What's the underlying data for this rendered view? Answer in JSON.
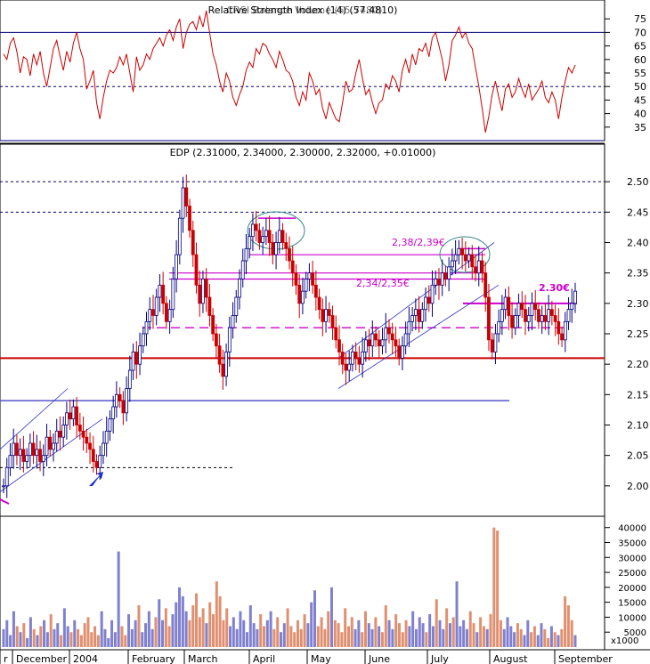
{
  "chart_data": [
    {
      "panel": "rsi",
      "type": "line",
      "title": "Relative Strength Index (14) (57.4810)",
      "overlay_title": "CRSI Balance Volume (55.7480)",
      "ylim": [
        30,
        80
      ],
      "yticks": [
        35,
        40,
        45,
        50,
        55,
        60,
        65,
        70,
        75
      ],
      "reference_lines": [
        70,
        50,
        30
      ],
      "values": [
        62,
        60,
        66,
        68,
        63,
        55,
        61,
        60,
        54,
        62,
        58,
        63,
        55,
        50,
        57,
        64,
        67,
        61,
        56,
        63,
        59,
        66,
        70,
        64,
        60,
        49,
        52,
        56,
        44,
        38,
        46,
        52,
        56,
        55,
        57,
        61,
        58,
        62,
        55,
        48,
        61,
        56,
        58,
        62,
        60,
        64,
        66,
        68,
        65,
        69,
        71,
        67,
        72,
        75,
        64,
        70,
        73,
        74,
        71,
        76,
        72,
        78,
        70,
        62,
        58,
        52,
        48,
        55,
        52,
        46,
        43,
        47,
        50,
        56,
        59,
        57,
        64,
        62,
        66,
        65,
        62,
        60,
        57,
        63,
        60,
        56,
        55,
        52,
        46,
        43,
        48,
        45,
        55,
        52,
        47,
        49,
        42,
        38,
        44,
        41,
        38,
        37,
        44,
        52,
        48,
        49,
        55,
        60,
        53,
        47,
        49,
        44,
        40,
        44,
        45,
        51,
        49,
        54,
        52,
        48,
        56,
        60,
        55,
        62,
        58,
        64,
        63,
        66,
        61,
        68,
        70,
        65,
        60,
        52,
        58,
        67,
        69,
        72,
        68,
        70,
        66,
        64,
        57,
        50,
        42,
        33,
        39,
        47,
        52,
        46,
        41,
        49,
        51,
        46,
        48,
        53,
        49,
        46,
        51,
        45,
        47,
        49,
        52,
        46,
        44,
        48,
        45,
        38,
        46,
        52,
        57,
        55,
        58
      ]
    },
    {
      "panel": "price",
      "type": "ohlc",
      "title": "EDP (2.31000, 2.34000, 2.30000, 2.32000, +0.01000)",
      "ylim": [
        1.95,
        2.55
      ],
      "yticks": [
        2.0,
        2.05,
        2.1,
        2.15,
        2.2,
        2.25,
        2.3,
        2.35,
        2.4,
        2.45,
        2.5
      ],
      "annotations": [
        "2,38/2,39€",
        "2,34/2,35€",
        "2.30€"
      ],
      "support_line": 2.21,
      "resistance_lines": [
        2.5,
        2.45
      ],
      "close": [
        2.0,
        2.03,
        2.05,
        2.07,
        2.05,
        2.06,
        2.04,
        2.05,
        2.07,
        2.05,
        2.06,
        2.04,
        2.05,
        2.08,
        2.06,
        2.07,
        2.09,
        2.08,
        2.1,
        2.12,
        2.11,
        2.13,
        2.1,
        2.09,
        2.08,
        2.07,
        2.06,
        2.04,
        2.03,
        2.05,
        2.07,
        2.09,
        2.11,
        2.13,
        2.15,
        2.14,
        2.12,
        2.16,
        2.19,
        2.22,
        2.2,
        2.23,
        2.25,
        2.27,
        2.29,
        2.28,
        2.31,
        2.33,
        2.3,
        2.27,
        2.29,
        2.34,
        2.38,
        2.44,
        2.49,
        2.46,
        2.42,
        2.38,
        2.33,
        2.3,
        2.34,
        2.31,
        2.28,
        2.25,
        2.23,
        2.2,
        2.18,
        2.22,
        2.26,
        2.28,
        2.31,
        2.34,
        2.37,
        2.39,
        2.41,
        2.43,
        2.42,
        2.4,
        2.41,
        2.42,
        2.4,
        2.38,
        2.4,
        2.42,
        2.4,
        2.39,
        2.37,
        2.35,
        2.33,
        2.3,
        2.32,
        2.34,
        2.35,
        2.33,
        2.31,
        2.29,
        2.27,
        2.29,
        2.28,
        2.26,
        2.24,
        2.22,
        2.2,
        2.19,
        2.2,
        2.22,
        2.21,
        2.2,
        2.22,
        2.24,
        2.23,
        2.25,
        2.24,
        2.23,
        2.24,
        2.26,
        2.25,
        2.24,
        2.23,
        2.21,
        2.23,
        2.25,
        2.27,
        2.28,
        2.29,
        2.27,
        2.29,
        2.31,
        2.3,
        2.33,
        2.34,
        2.33,
        2.35,
        2.34,
        2.36,
        2.37,
        2.38,
        2.39,
        2.38,
        2.37,
        2.38,
        2.36,
        2.35,
        2.37,
        2.35,
        2.31,
        2.24,
        2.22,
        2.25,
        2.27,
        2.29,
        2.31,
        2.28,
        2.26,
        2.28,
        2.3,
        2.29,
        2.27,
        2.28,
        2.3,
        2.29,
        2.27,
        2.28,
        2.27,
        2.29,
        2.28,
        2.27,
        2.25,
        2.24,
        2.27,
        2.29,
        2.3,
        2.32
      ]
    },
    {
      "panel": "volume",
      "type": "bar",
      "unit_label": "x1000",
      "ylim": [
        0,
        42000
      ],
      "yticks": [
        5000,
        10000,
        15000,
        20000,
        25000,
        30000,
        35000,
        40000
      ],
      "yticklabels": [
        "5000",
        "10000",
        "15000",
        "20000",
        "25000",
        "30000",
        "35000",
        "40000"
      ],
      "values": [
        6000,
        9000,
        4000,
        12000,
        7000,
        5000,
        8000,
        3000,
        10000,
        6000,
        4000,
        7000,
        9000,
        5000,
        11000,
        6000,
        8000,
        4000,
        13000,
        7000,
        5000,
        9000,
        6000,
        4000,
        8000,
        10000,
        5000,
        7000,
        4000,
        12000,
        6000,
        3000,
        9000,
        5000,
        32000,
        7000,
        4000,
        11000,
        6000,
        9000,
        14000,
        5000,
        8000,
        12000,
        6000,
        10000,
        16000,
        9000,
        13000,
        7000,
        11000,
        15000,
        20000,
        17000,
        12000,
        9000,
        14000,
        18000,
        10000,
        13000,
        8000,
        15000,
        11000,
        22000,
        17000,
        9000,
        13000,
        7000,
        10000,
        6000,
        12000,
        9000,
        5000,
        14000,
        8000,
        6000,
        11000,
        7000,
        9000,
        12000,
        6000,
        10000,
        5000,
        8000,
        13000,
        7000,
        5000,
        9000,
        6000,
        11000,
        8000,
        15000,
        19000,
        7000,
        10000,
        6000,
        12000,
        20000,
        9000,
        8000,
        5000,
        13000,
        7000,
        10000,
        6000,
        9000,
        5000,
        12000,
        8000,
        6000,
        10000,
        7000,
        5000,
        14000,
        9000,
        6000,
        11000,
        8000,
        5000,
        9000,
        7000,
        12000,
        6000,
        10000,
        8000,
        5000,
        11000,
        7000,
        16000,
        9000,
        6000,
        13000,
        8000,
        10000,
        22000,
        7000,
        9000,
        6000,
        12000,
        8000,
        5000,
        10000,
        7000,
        6000,
        11000,
        40000,
        39000,
        9000,
        6000,
        10000,
        7000,
        5000,
        8000,
        6000,
        4000,
        9000,
        5000,
        7000,
        4000,
        8000,
        6000,
        3000,
        7000,
        5000,
        4000,
        6000,
        17000,
        14000,
        9000,
        4000
      ],
      "colors_up": "#8080d0",
      "colors_down": "#e09070"
    }
  ],
  "x_axis": {
    "labels": [
      "r",
      "December",
      "2004",
      "February",
      "March",
      "April",
      "May",
      "June",
      "July",
      "August",
      "September"
    ]
  },
  "colors": {
    "rsi_line": "#cc0000",
    "reference_line": "#000080",
    "price_up": "#000080",
    "price_down": "#cc0000",
    "annotation": "#cc00cc",
    "support": "#cc0000",
    "channel": "#3333cc",
    "ellipse": "#338888"
  }
}
